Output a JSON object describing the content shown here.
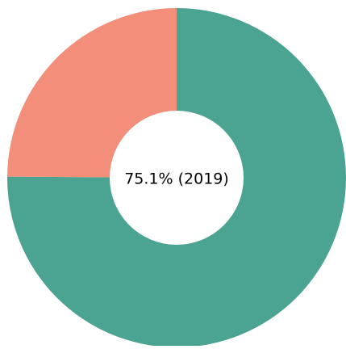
{
  "chart_data": {
    "type": "pie",
    "donut": true,
    "center_label": "75.1% (2019)",
    "values": [
      75.1,
      24.9
    ],
    "colors": [
      "#4ba392",
      "#f28e7a"
    ]
  }
}
